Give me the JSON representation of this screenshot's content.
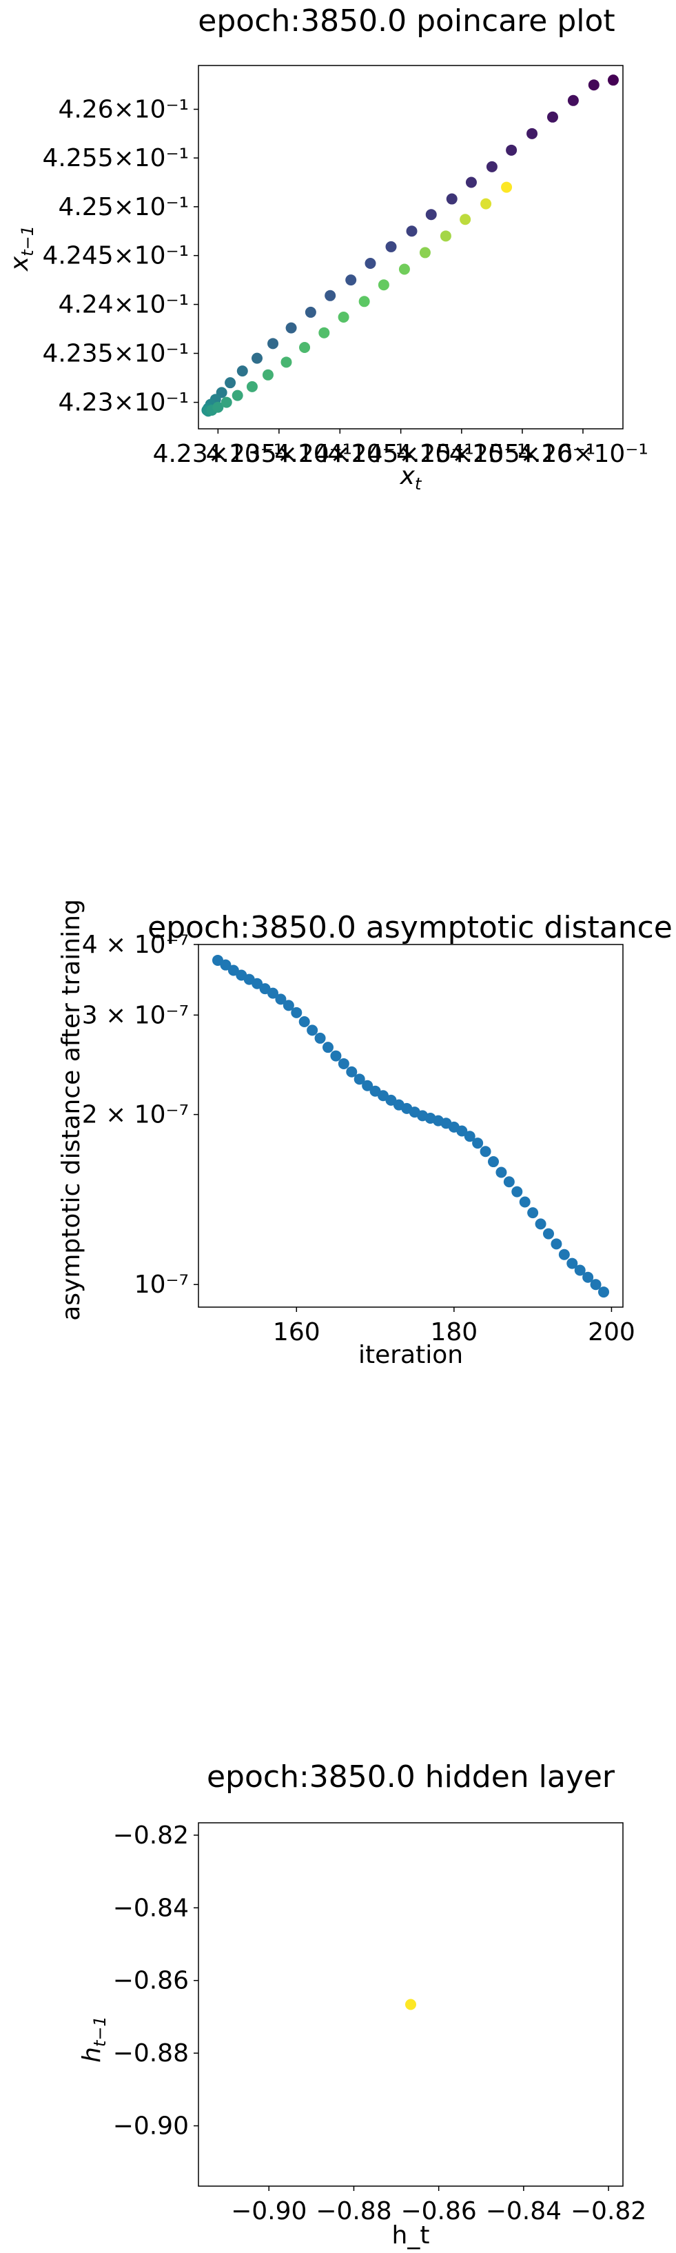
{
  "chart_data": [
    {
      "type": "scatter",
      "title": "epoch:3850.0 poincare plot",
      "xlabel": "x_t",
      "ylabel": "x_{t-1}",
      "x_scale": "log",
      "y_scale": "log",
      "xlim": [
        0.42284,
        0.42633
      ],
      "ylim": [
        0.42273,
        0.42645
      ],
      "xtick_labels": [
        "4.23×10⁻¹",
        "4.235×10⁻¹",
        "4.24×10⁻¹",
        "4.245×10⁻¹",
        "4.25×10⁻¹",
        "4.255×10⁻¹",
        "4.26×10⁻¹"
      ],
      "xticks": [
        0.423,
        0.4235,
        0.424,
        0.4245,
        0.425,
        0.4255,
        0.426
      ],
      "ytick_labels": [
        "4.23×10⁻¹",
        "4.235×10⁻¹",
        "4.24×10⁻¹",
        "4.245×10⁻¹",
        "4.25×10⁻¹",
        "4.255×10⁻¹",
        "4.26×10⁻¹"
      ],
      "yticks": [
        0.423,
        0.4235,
        0.424,
        0.4245,
        0.425,
        0.4255,
        0.426
      ],
      "colormap": [
        "#440154",
        "#3b528b",
        "#21918c",
        "#5ec962",
        "#fde725"
      ],
      "points": [
        {
          "x": 0.42625,
          "y": 0.4263,
          "c": 0.0
        },
        {
          "x": 0.42609,
          "y": 0.42625,
          "c": 0.02
        },
        {
          "x": 0.42592,
          "y": 0.42609,
          "c": 0.04
        },
        {
          "x": 0.42575,
          "y": 0.42592,
          "c": 0.06
        },
        {
          "x": 0.42558,
          "y": 0.42575,
          "c": 0.08
        },
        {
          "x": 0.42541,
          "y": 0.42558,
          "c": 0.1
        },
        {
          "x": 0.42525,
          "y": 0.42541,
          "c": 0.12
        },
        {
          "x": 0.42508,
          "y": 0.42525,
          "c": 0.14
        },
        {
          "x": 0.42492,
          "y": 0.42508,
          "c": 0.16
        },
        {
          "x": 0.42475,
          "y": 0.42492,
          "c": 0.18
        },
        {
          "x": 0.42459,
          "y": 0.42475,
          "c": 0.2
        },
        {
          "x": 0.42442,
          "y": 0.42459,
          "c": 0.22
        },
        {
          "x": 0.42425,
          "y": 0.42442,
          "c": 0.24
        },
        {
          "x": 0.42409,
          "y": 0.42425,
          "c": 0.26
        },
        {
          "x": 0.42392,
          "y": 0.42409,
          "c": 0.28
        },
        {
          "x": 0.42376,
          "y": 0.42392,
          "c": 0.3
        },
        {
          "x": 0.4236,
          "y": 0.42376,
          "c": 0.32
        },
        {
          "x": 0.42345,
          "y": 0.4236,
          "c": 0.34
        },
        {
          "x": 0.42332,
          "y": 0.42345,
          "c": 0.36
        },
        {
          "x": 0.4232,
          "y": 0.42332,
          "c": 0.38
        },
        {
          "x": 0.4231,
          "y": 0.4232,
          "c": 0.4
        },
        {
          "x": 0.42303,
          "y": 0.4231,
          "c": 0.42
        },
        {
          "x": 0.42298,
          "y": 0.42303,
          "c": 0.44
        },
        {
          "x": 0.42294,
          "y": 0.42298,
          "c": 0.46
        },
        {
          "x": 0.42292,
          "y": 0.42294,
          "c": 0.48
        },
        {
          "x": 0.42291,
          "y": 0.42292,
          "c": 0.5
        },
        {
          "x": 0.42292,
          "y": 0.42291,
          "c": 0.52
        },
        {
          "x": 0.42295,
          "y": 0.42292,
          "c": 0.54
        },
        {
          "x": 0.423,
          "y": 0.42295,
          "c": 0.56
        },
        {
          "x": 0.42307,
          "y": 0.423,
          "c": 0.58
        },
        {
          "x": 0.42316,
          "y": 0.42307,
          "c": 0.6
        },
        {
          "x": 0.42328,
          "y": 0.42316,
          "c": 0.62
        },
        {
          "x": 0.42341,
          "y": 0.42328,
          "c": 0.64
        },
        {
          "x": 0.42356,
          "y": 0.42341,
          "c": 0.66
        },
        {
          "x": 0.42371,
          "y": 0.42356,
          "c": 0.68
        },
        {
          "x": 0.42387,
          "y": 0.42371,
          "c": 0.7
        },
        {
          "x": 0.42403,
          "y": 0.42387,
          "c": 0.72
        },
        {
          "x": 0.4242,
          "y": 0.42403,
          "c": 0.74
        },
        {
          "x": 0.42436,
          "y": 0.4242,
          "c": 0.76
        },
        {
          "x": 0.42453,
          "y": 0.42436,
          "c": 0.78
        },
        {
          "x": 0.4247,
          "y": 0.42453,
          "c": 0.82
        },
        {
          "x": 0.42487,
          "y": 0.4247,
          "c": 0.86
        },
        {
          "x": 0.42503,
          "y": 0.42487,
          "c": 0.9
        },
        {
          "x": 0.4252,
          "y": 0.42503,
          "c": 0.95
        },
        {
          "x": 0.42537,
          "y": 0.4252,
          "c": 1.0
        }
      ]
    },
    {
      "type": "scatter",
      "title": "epoch:3850.0 asymptotic distance",
      "xlabel": "iteration",
      "ylabel": "asymptotic distance after training",
      "y_scale": "log",
      "xlim": [
        147.55,
        201.45
      ],
      "ylim": [
        9.12e-08,
        4e-07
      ],
      "xticks": [
        160,
        180,
        200
      ],
      "xtick_labels": [
        "160",
        "180",
        "200"
      ],
      "yticks": [
        1e-07,
        2e-07,
        3e-07,
        4e-07
      ],
      "ytick_labels": [
        "10⁻⁷",
        "2 × 10⁻⁷",
        "3 × 10⁻⁷",
        "4 × 10⁻⁷"
      ],
      "color": "#1f77b4",
      "x": [
        150,
        151,
        152,
        153,
        154,
        155,
        156,
        157,
        158,
        159,
        160,
        161,
        162,
        163,
        164,
        165,
        166,
        167,
        168,
        169,
        170,
        171,
        172,
        173,
        174,
        175,
        176,
        177,
        178,
        179,
        180,
        181,
        182,
        183,
        184,
        185,
        186,
        187,
        188,
        189,
        190,
        191,
        192,
        193,
        194,
        195,
        196,
        197,
        198,
        199
      ],
      "y": [
        3.75e-07,
        3.68e-07,
        3.6e-07,
        3.53e-07,
        3.47e-07,
        3.41e-07,
        3.34e-07,
        3.28e-07,
        3.2e-07,
        3.12e-07,
        3.03e-07,
        2.92e-07,
        2.82e-07,
        2.73e-07,
        2.63e-07,
        2.54e-07,
        2.46e-07,
        2.38e-07,
        2.31e-07,
        2.25e-07,
        2.2e-07,
        2.16e-07,
        2.12e-07,
        2.08e-07,
        2.05e-07,
        2.02e-07,
        1.99e-07,
        1.97e-07,
        1.95e-07,
        1.93e-07,
        1.9e-07,
        1.87e-07,
        1.83e-07,
        1.78e-07,
        1.72e-07,
        1.65e-07,
        1.58e-07,
        1.52e-07,
        1.46e-07,
        1.4e-07,
        1.34e-07,
        1.28e-07,
        1.23e-07,
        1.18e-07,
        1.13e-07,
        1.09e-07,
        1.06e-07,
        1.03e-07,
        1e-07,
        9.7e-08
      ]
    },
    {
      "type": "scatter",
      "title": "epoch:3850.0 hidden layer",
      "xlabel": "h_t",
      "ylabel": "h_{t-1}",
      "xlim": [
        -0.9166,
        -0.8166
      ],
      "ylim": [
        -0.9166,
        -0.8166
      ],
      "xticks": [
        -0.9,
        -0.88,
        -0.86,
        -0.84,
        -0.82
      ],
      "xtick_labels": [
        "−0.90",
        "−0.88",
        "−0.86",
        "−0.84",
        "−0.82"
      ],
      "yticks": [
        -0.9,
        -0.88,
        -0.86,
        -0.84,
        -0.82
      ],
      "ytick_labels": [
        "−0.90",
        "−0.88",
        "−0.86",
        "−0.84",
        "−0.82"
      ],
      "color": "#fde725",
      "points": [
        {
          "x": -0.8666,
          "y": -0.8666
        }
      ]
    }
  ]
}
